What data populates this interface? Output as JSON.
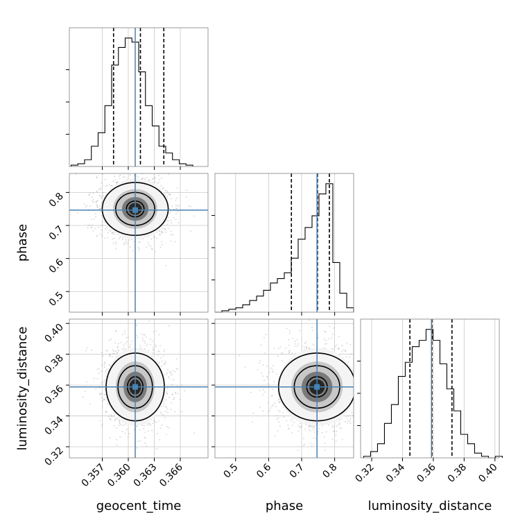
{
  "chart_data": {
    "type": "corner",
    "parameters": [
      {
        "key": "geocent_time",
        "label": "geocent_time",
        "range": [
          0.3532,
          0.3692
        ],
        "ticks": [
          0.357,
          0.36,
          0.363,
          0.366
        ],
        "tick_labels": [
          "0.357",
          "0.360",
          "0.363",
          "0.366"
        ],
        "truth": 0.3608,
        "quantiles": [
          0.3583,
          0.3614,
          0.3641
        ],
        "histogram": {
          "edges_start": 0.3534,
          "bin_width": 0.00078,
          "counts": [
            1,
            2,
            5,
            15,
            25,
            45,
            75,
            88,
            95,
            92,
            70,
            45,
            30,
            15,
            10,
            5,
            2,
            1
          ]
        }
      },
      {
        "key": "phase",
        "label": "phase",
        "range": [
          0.4375,
          0.8575
        ],
        "ticks": [
          0.5,
          0.6,
          0.7,
          0.8
        ],
        "tick_labels": [
          "0.5",
          "0.6",
          "0.7",
          "0.8"
        ],
        "truth": 0.7465,
        "quantiles": [
          0.669,
          0.748,
          0.784
        ],
        "histogram": {
          "edges_start": 0.4375,
          "bin_width": 0.021,
          "counts": [
            0,
            1,
            2,
            3,
            5,
            8,
            11,
            15,
            20,
            23,
            27,
            37,
            50,
            58,
            66,
            81,
            88,
            34,
            13,
            3
          ]
        }
      },
      {
        "key": "luminosity_distance",
        "label": "luminosity_distance",
        "range": [
          0.3128,
          0.4028
        ],
        "ticks": [
          0.32,
          0.34,
          0.36,
          0.38,
          0.4
        ],
        "tick_labels": [
          "0.32",
          "0.34",
          "0.36",
          "0.38",
          "0.40"
        ],
        "truth": 0.3588,
        "quantiles": [
          0.3448,
          0.3591,
          0.3721
        ],
        "histogram": {
          "edges_start": 0.3148,
          "bin_width": 0.0045,
          "counts": [
            1,
            4,
            9,
            22,
            34,
            52,
            61,
            71,
            75,
            82,
            75,
            60,
            44,
            30,
            15,
            9,
            3,
            1,
            0,
            1
          ]
        }
      }
    ],
    "pairs": [
      {
        "x": "geocent_time",
        "y": "phase",
        "peak": [
          0.3608,
          0.75
        ],
        "spread": [
          0.0017,
          0.04
        ]
      },
      {
        "x": "geocent_time",
        "y": "luminosity_distance",
        "peak": [
          0.3608,
          0.3588
        ],
        "spread": [
          0.0015,
          0.011
        ]
      },
      {
        "x": "phase",
        "y": "luminosity_distance",
        "peak": [
          0.7465,
          0.3588
        ],
        "spread": [
          0.052,
          0.011
        ]
      }
    ],
    "truth_color": "#4682b4",
    "histogram_color": "#000000",
    "scatter_color": "#9e9e9e",
    "grid": true
  }
}
